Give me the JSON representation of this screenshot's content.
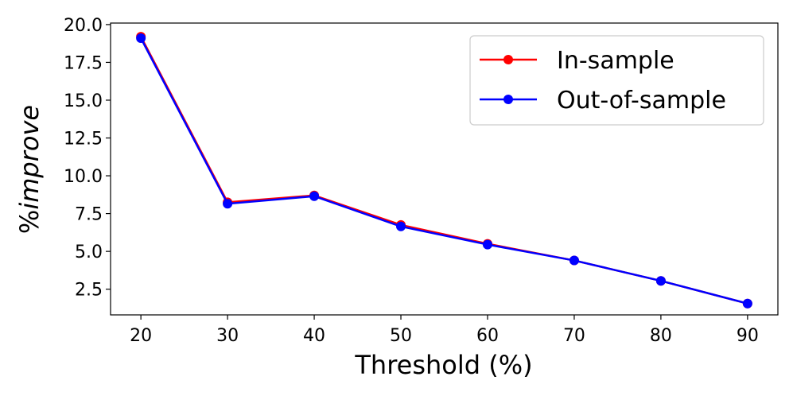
{
  "chart_data": {
    "type": "line",
    "xlabel": "Threshold (%)",
    "ylabel_prefix": "%",
    "ylabel_italic": "improve",
    "x": [
      20,
      30,
      40,
      50,
      60,
      70,
      80,
      90
    ],
    "xticks": [
      "20",
      "30",
      "40",
      "50",
      "60",
      "70",
      "80",
      "90"
    ],
    "yticks": [
      "2.5",
      "5.0",
      "7.5",
      "10.0",
      "12.5",
      "15.0",
      "17.5",
      "20.0"
    ],
    "ytick_values": [
      2.5,
      5.0,
      7.5,
      10.0,
      12.5,
      15.0,
      17.5,
      20.0
    ],
    "xlim": [
      16.5,
      93.5
    ],
    "ylim": [
      0.8,
      20.1
    ],
    "grid": false,
    "legend_position": "top-right",
    "series": [
      {
        "name": "In-sample",
        "color": "#ff0000",
        "values": [
          19.2,
          8.25,
          8.7,
          6.75,
          5.5,
          4.4,
          3.05,
          1.55
        ]
      },
      {
        "name": "Out-of-sample",
        "color": "#0000ff",
        "values": [
          19.1,
          8.15,
          8.65,
          6.65,
          5.45,
          4.4,
          3.05,
          1.55
        ]
      }
    ]
  }
}
